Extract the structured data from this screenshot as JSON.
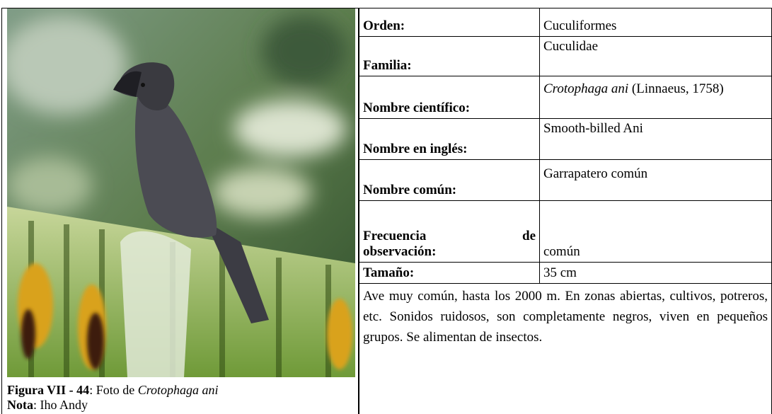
{
  "figure": {
    "caption_label": "Figura VII - 44",
    "caption_text": ": Foto de ",
    "caption_species": "Crotophaga ani",
    "note_label": "Nota",
    "note_text": ": Iho Andy"
  },
  "table": {
    "rows": [
      {
        "label": "Orden:",
        "value": "Cuculiformes"
      },
      {
        "label": "Familia:",
        "value": "Cuculidae"
      },
      {
        "label": "Nombre científico:",
        "value_italic": "Crotophaga ani",
        "value": " (Linnaeus, 1758)"
      },
      {
        "label": "Nombre en inglés:",
        "value": "Smooth-billed Ani"
      },
      {
        "label": "Nombre común:",
        "value": "Garrapatero común"
      },
      {
        "label_lines": [
          "Frecuencia de",
          "observación:"
        ],
        "value": "común"
      },
      {
        "label": "Tamaño:",
        "value": "35 cm"
      }
    ],
    "description": "Ave muy común, hasta los 2000 m. En zonas abiertas, cultivos, potreros, etc. Sonidos ruidosos, son completamente negros, viven en pequeños grupos. Se alimentan de insectos."
  }
}
